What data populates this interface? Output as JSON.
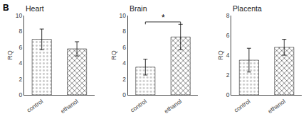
{
  "chart_data": [
    {
      "type": "bar",
      "title": "Heart",
      "ylabel": "RQ",
      "categories": [
        "control",
        "ethanol"
      ],
      "values": [
        7.0,
        5.8
      ],
      "errors": [
        1.3,
        0.9
      ],
      "colors": [
        "#c8c8c8",
        "#505050"
      ],
      "ylim": [
        0,
        10
      ],
      "yticks": [
        0,
        2,
        4,
        6,
        8,
        10
      ],
      "grid": false,
      "annotations": [
        {
          "text": "B"
        }
      ]
    },
    {
      "type": "bar",
      "title": "Brain",
      "ylabel": "RQ",
      "categories": [
        "control",
        "ethanol"
      ],
      "values": [
        3.5,
        7.3
      ],
      "errors": [
        1.0,
        1.6
      ],
      "colors": [
        "#c8c8c8",
        "#505050"
      ],
      "ylim": [
        0,
        10
      ],
      "yticks": [
        0,
        2,
        4,
        6,
        8,
        10
      ],
      "grid": false,
      "annotations": [
        {
          "text": "*",
          "x": [
            "control",
            "ethanol"
          ],
          "y": 9.2
        }
      ]
    },
    {
      "type": "bar",
      "title": "Placenta",
      "ylabel": "RQ",
      "categories": [
        "control",
        "ethanol"
      ],
      "values": [
        3.5,
        4.8
      ],
      "errors": [
        1.2,
        0.8
      ],
      "colors": [
        "#c8c8c8",
        "#505050"
      ],
      "ylim": [
        0,
        8
      ],
      "yticks": [
        0,
        2,
        4,
        6,
        8
      ],
      "grid": false
    }
  ]
}
